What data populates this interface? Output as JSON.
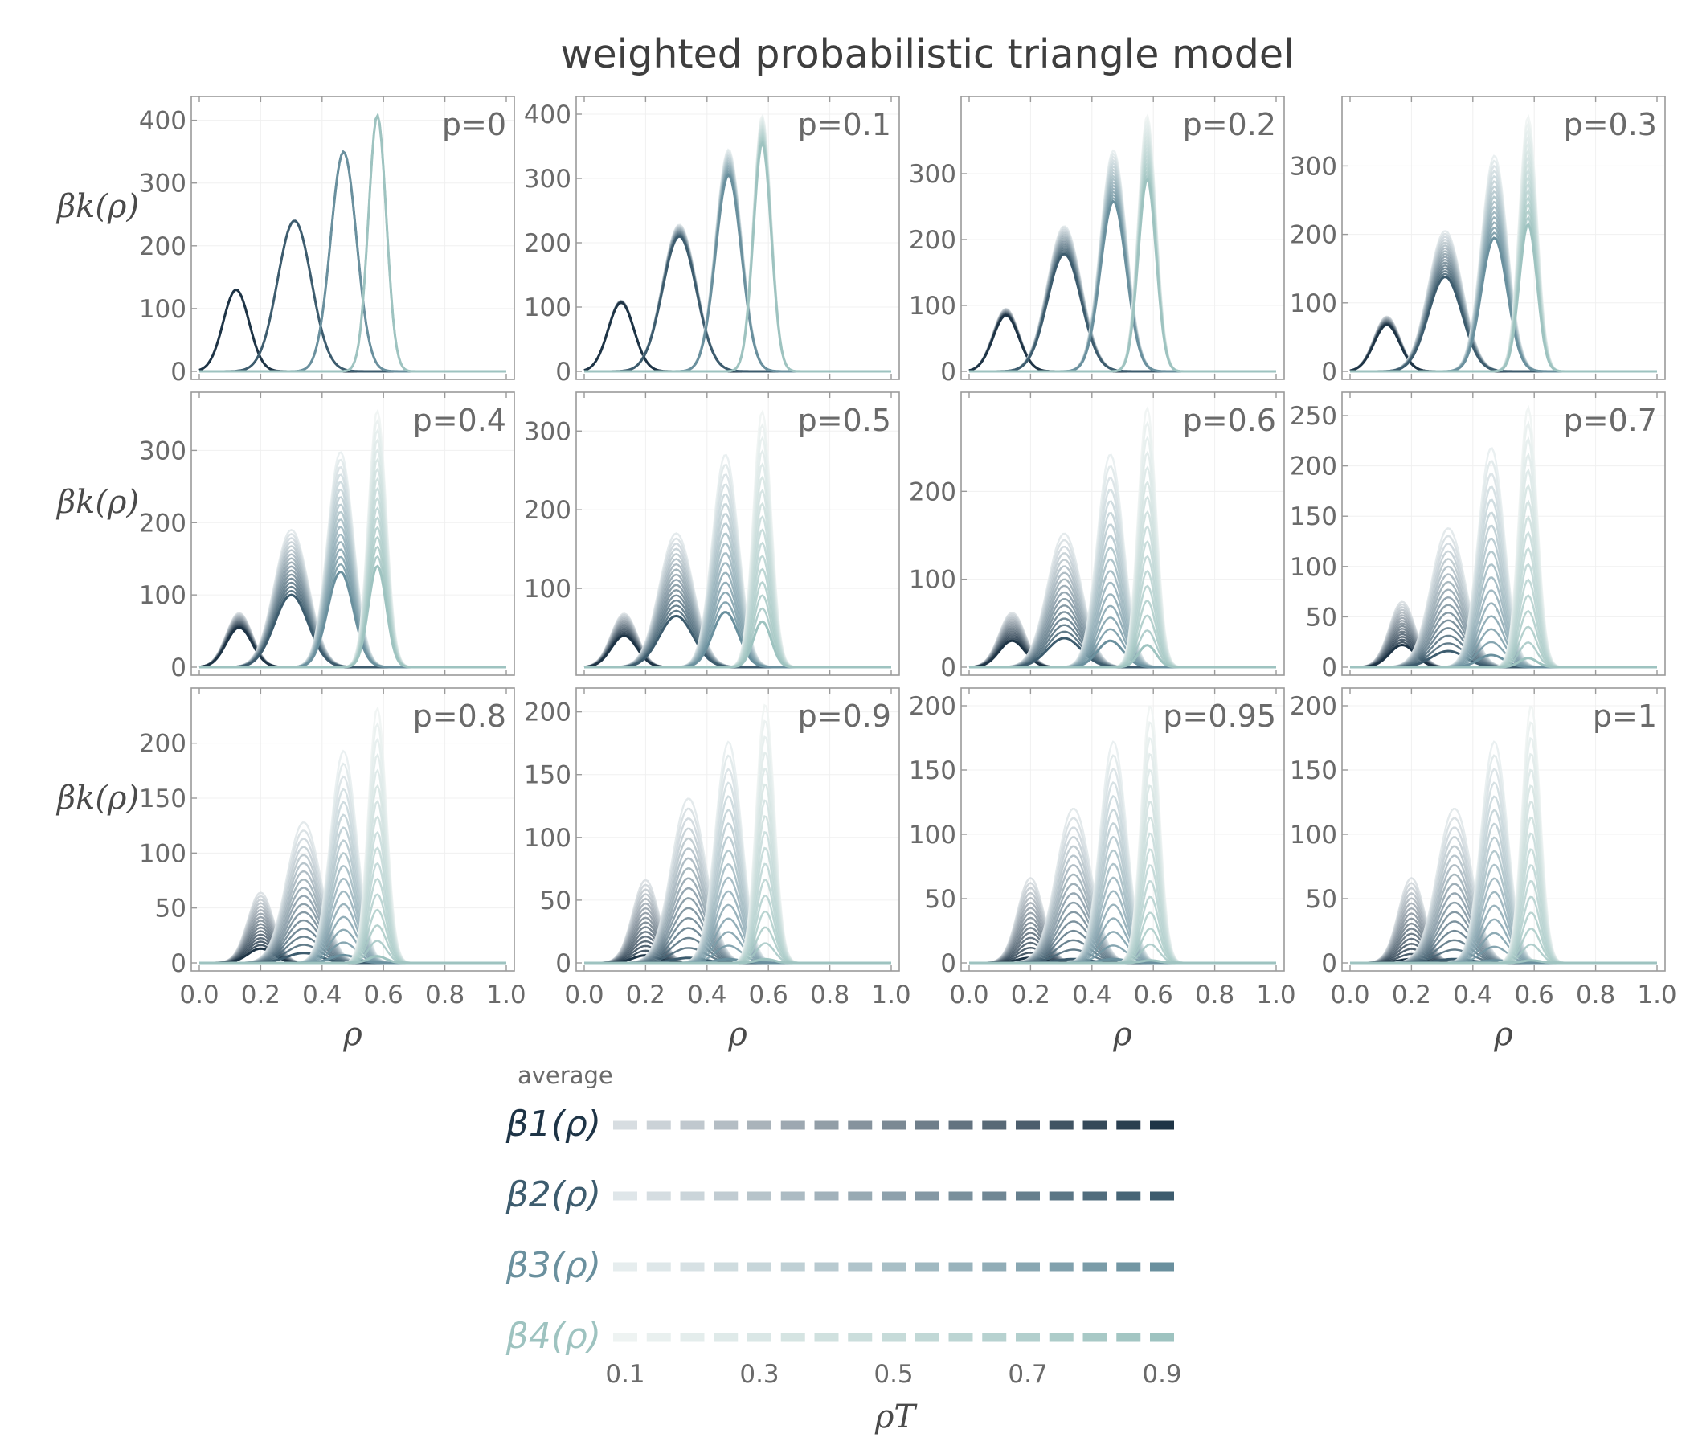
{
  "title": "weighted probabilistic triangle model",
  "y_axis_label": "βk(ρ)",
  "x_axis_label": "ρ",
  "x_ticks": [
    "0.0",
    "0.2",
    "0.4",
    "0.6",
    "0.8",
    "1.0"
  ],
  "legend": {
    "title": "average",
    "rows": [
      "β1(ρ)",
      "β2(ρ)",
      "β3(ρ)",
      "β4(ρ)"
    ],
    "row_colors": [
      "#1e3446",
      "#3d5c6e",
      "#6a909e",
      "#9ec3c0"
    ],
    "axis_ticks": [
      "0.1",
      "0.3",
      "0.5",
      "0.7",
      "0.9"
    ],
    "axis_label": "ρT"
  },
  "chart_data": {
    "type": "line",
    "title": "weighted probabilistic triangle model",
    "xlabel": "ρ",
    "ylabel": "βk(ρ)",
    "xlim": [
      0,
      1
    ],
    "grid": true,
    "rho_T": [
      0.1,
      0.15,
      0.2,
      0.25,
      0.3,
      0.35,
      0.4,
      0.45,
      0.5,
      0.55,
      0.6,
      0.65,
      0.7,
      0.75,
      0.8,
      0.85,
      0.9
    ],
    "legend_position": "bottom-center",
    "series_colors": {
      "beta1": [
        "#d7dde1",
        "#1e3446"
      ],
      "beta2": [
        "#dfe6e9",
        "#3d5c6e"
      ],
      "beta3": [
        "#e6edee",
        "#6a909e"
      ],
      "beta4": [
        "#eef3f2",
        "#9ec3c0"
      ]
    },
    "panels": [
      {
        "label": "p=0",
        "ylim": [
          0,
          420
        ],
        "yticks": [
          0,
          100,
          200,
          300,
          400
        ],
        "peaks": {
          "beta1": [
            0.12,
            130,
            130
          ],
          "beta2": [
            0.31,
            240,
            240
          ],
          "beta3": [
            0.47,
            350,
            350
          ],
          "beta4": [
            0.58,
            408,
            408
          ]
        }
      },
      {
        "label": "p=0.1",
        "ylim": [
          0,
          410
        ],
        "yticks": [
          0,
          100,
          200,
          300,
          400
        ],
        "peaks": {
          "beta1": [
            0.12,
            110,
            107
          ],
          "beta2": [
            0.31,
            228,
            210
          ],
          "beta3": [
            0.47,
            345,
            305
          ],
          "beta4": [
            0.58,
            398,
            355
          ]
        }
      },
      {
        "label": "p=0.2",
        "ylim": [
          0,
          400
        ],
        "yticks": [
          0,
          100,
          200,
          300
        ],
        "peaks": {
          "beta1": [
            0.12,
            95,
            85
          ],
          "beta2": [
            0.31,
            220,
            178
          ],
          "beta3": [
            0.47,
            335,
            258
          ],
          "beta4": [
            0.58,
            388,
            292
          ]
        }
      },
      {
        "label": "p=0.3",
        "ylim": [
          0,
          385
        ],
        "yticks": [
          0,
          100,
          200,
          300
        ],
        "peaks": {
          "beta1": [
            0.12,
            80,
            68
          ],
          "beta2": [
            0.31,
            205,
            138
          ],
          "beta3": [
            0.47,
            315,
            195
          ],
          "beta4": [
            0.58,
            372,
            215
          ]
        }
      },
      {
        "label": "p=0.4",
        "ylim": [
          0,
          365
        ],
        "yticks": [
          0,
          100,
          200,
          300
        ],
        "peaks": {
          "beta1": [
            0.13,
            75,
            55
          ],
          "beta2": [
            0.3,
            190,
            100
          ],
          "beta3": [
            0.46,
            298,
            132
          ],
          "beta4": [
            0.58,
            355,
            140
          ]
        }
      },
      {
        "label": "p=0.5",
        "ylim": [
          0,
          335
        ],
        "yticks": [
          100,
          200,
          300
        ],
        "peaks": {
          "beta1": [
            0.13,
            68,
            40
          ],
          "beta2": [
            0.3,
            170,
            65
          ],
          "beta3": [
            0.46,
            270,
            70
          ],
          "beta4": [
            0.58,
            325,
            58
          ]
        }
      },
      {
        "label": "p=0.6",
        "ylim": [
          0,
          300
        ],
        "yticks": [
          0,
          100,
          200
        ],
        "peaks": {
          "beta1": [
            0.14,
            62,
            30
          ],
          "beta2": [
            0.31,
            152,
            33
          ],
          "beta3": [
            0.46,
            242,
            30
          ],
          "beta4": [
            0.58,
            295,
            25
          ]
        }
      },
      {
        "label": "p=0.7",
        "ylim": [
          0,
          262
        ],
        "yticks": [
          0,
          50,
          100,
          150,
          200,
          250
        ],
        "peaks": {
          "beta1": [
            0.17,
            65,
            22
          ],
          "beta2": [
            0.32,
            138,
            16
          ],
          "beta3": [
            0.46,
            218,
            12
          ],
          "beta4": [
            0.58,
            258,
            9
          ]
        }
      },
      {
        "label": "p=0.8",
        "ylim": [
          0,
          240
        ],
        "yticks": [
          0,
          50,
          100,
          150,
          200
        ],
        "peaks": {
          "beta1": [
            0.2,
            64,
            13
          ],
          "beta2": [
            0.34,
            128,
            9
          ],
          "beta3": [
            0.47,
            193,
            7
          ],
          "beta4": [
            0.58,
            232,
            6
          ]
        }
      },
      {
        "label": "p=0.9",
        "ylim": [
          0,
          210
        ],
        "yticks": [
          0,
          50,
          100,
          150,
          200
        ],
        "peaks": {
          "beta1": [
            0.2,
            66,
            6
          ],
          "beta2": [
            0.34,
            131,
            4
          ],
          "beta3": [
            0.47,
            176,
            3
          ],
          "beta4": [
            0.59,
            206,
            3
          ]
        }
      },
      {
        "label": "p=0.95",
        "ylim": [
          0,
          205
        ],
        "yticks": [
          0,
          50,
          100,
          150,
          200
        ],
        "peaks": {
          "beta1": [
            0.2,
            66,
            4
          ],
          "beta2": [
            0.34,
            120,
            3
          ],
          "beta3": [
            0.47,
            172,
            3
          ],
          "beta4": [
            0.59,
            200,
            2
          ]
        }
      },
      {
        "label": "p=1",
        "ylim": [
          0,
          205
        ],
        "yticks": [
          0,
          50,
          100,
          150,
          200
        ],
        "peaks": {
          "beta1": [
            0.2,
            66,
            3
          ],
          "beta2": [
            0.34,
            120,
            3
          ],
          "beta3": [
            0.47,
            172,
            2
          ],
          "beta4": [
            0.59,
            200,
            2
          ]
        }
      }
    ]
  }
}
